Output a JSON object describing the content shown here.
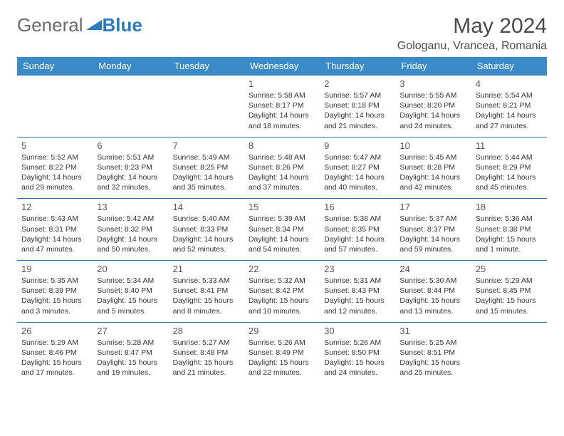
{
  "brand": {
    "part1": "General",
    "part2": "Blue",
    "color1": "#6b6b6b",
    "color2": "#2b7bbf"
  },
  "title": "May 2024",
  "location": "Gologanu, Vrancea, Romania",
  "header_bg": "#3b8bc9",
  "header_fg": "#ffffff",
  "row_border": "#2f6fa3",
  "weekdays": [
    "Sunday",
    "Monday",
    "Tuesday",
    "Wednesday",
    "Thursday",
    "Friday",
    "Saturday"
  ],
  "weeks": [
    [
      null,
      null,
      null,
      {
        "n": "1",
        "sr": "5:58 AM",
        "ss": "8:17 PM",
        "dl": "14 hours and 18 minutes."
      },
      {
        "n": "2",
        "sr": "5:57 AM",
        "ss": "8:18 PM",
        "dl": "14 hours and 21 minutes."
      },
      {
        "n": "3",
        "sr": "5:55 AM",
        "ss": "8:20 PM",
        "dl": "14 hours and 24 minutes."
      },
      {
        "n": "4",
        "sr": "5:54 AM",
        "ss": "8:21 PM",
        "dl": "14 hours and 27 minutes."
      }
    ],
    [
      {
        "n": "5",
        "sr": "5:52 AM",
        "ss": "8:22 PM",
        "dl": "14 hours and 29 minutes."
      },
      {
        "n": "6",
        "sr": "5:51 AM",
        "ss": "8:23 PM",
        "dl": "14 hours and 32 minutes."
      },
      {
        "n": "7",
        "sr": "5:49 AM",
        "ss": "8:25 PM",
        "dl": "14 hours and 35 minutes."
      },
      {
        "n": "8",
        "sr": "5:48 AM",
        "ss": "8:26 PM",
        "dl": "14 hours and 37 minutes."
      },
      {
        "n": "9",
        "sr": "5:47 AM",
        "ss": "8:27 PM",
        "dl": "14 hours and 40 minutes."
      },
      {
        "n": "10",
        "sr": "5:45 AM",
        "ss": "8:28 PM",
        "dl": "14 hours and 42 minutes."
      },
      {
        "n": "11",
        "sr": "5:44 AM",
        "ss": "8:29 PM",
        "dl": "14 hours and 45 minutes."
      }
    ],
    [
      {
        "n": "12",
        "sr": "5:43 AM",
        "ss": "8:31 PM",
        "dl": "14 hours and 47 minutes."
      },
      {
        "n": "13",
        "sr": "5:42 AM",
        "ss": "8:32 PM",
        "dl": "14 hours and 50 minutes."
      },
      {
        "n": "14",
        "sr": "5:40 AM",
        "ss": "8:33 PM",
        "dl": "14 hours and 52 minutes."
      },
      {
        "n": "15",
        "sr": "5:39 AM",
        "ss": "8:34 PM",
        "dl": "14 hours and 54 minutes."
      },
      {
        "n": "16",
        "sr": "5:38 AM",
        "ss": "8:35 PM",
        "dl": "14 hours and 57 minutes."
      },
      {
        "n": "17",
        "sr": "5:37 AM",
        "ss": "8:37 PM",
        "dl": "14 hours and 59 minutes."
      },
      {
        "n": "18",
        "sr": "5:36 AM",
        "ss": "8:38 PM",
        "dl": "15 hours and 1 minute."
      }
    ],
    [
      {
        "n": "19",
        "sr": "5:35 AM",
        "ss": "8:39 PM",
        "dl": "15 hours and 3 minutes."
      },
      {
        "n": "20",
        "sr": "5:34 AM",
        "ss": "8:40 PM",
        "dl": "15 hours and 5 minutes."
      },
      {
        "n": "21",
        "sr": "5:33 AM",
        "ss": "8:41 PM",
        "dl": "15 hours and 8 minutes."
      },
      {
        "n": "22",
        "sr": "5:32 AM",
        "ss": "8:42 PM",
        "dl": "15 hours and 10 minutes."
      },
      {
        "n": "23",
        "sr": "5:31 AM",
        "ss": "8:43 PM",
        "dl": "15 hours and 12 minutes."
      },
      {
        "n": "24",
        "sr": "5:30 AM",
        "ss": "8:44 PM",
        "dl": "15 hours and 13 minutes."
      },
      {
        "n": "25",
        "sr": "5:29 AM",
        "ss": "8:45 PM",
        "dl": "15 hours and 15 minutes."
      }
    ],
    [
      {
        "n": "26",
        "sr": "5:29 AM",
        "ss": "8:46 PM",
        "dl": "15 hours and 17 minutes."
      },
      {
        "n": "27",
        "sr": "5:28 AM",
        "ss": "8:47 PM",
        "dl": "15 hours and 19 minutes."
      },
      {
        "n": "28",
        "sr": "5:27 AM",
        "ss": "8:48 PM",
        "dl": "15 hours and 21 minutes."
      },
      {
        "n": "29",
        "sr": "5:26 AM",
        "ss": "8:49 PM",
        "dl": "15 hours and 22 minutes."
      },
      {
        "n": "30",
        "sr": "5:26 AM",
        "ss": "8:50 PM",
        "dl": "15 hours and 24 minutes."
      },
      {
        "n": "31",
        "sr": "5:25 AM",
        "ss": "8:51 PM",
        "dl": "15 hours and 25 minutes."
      },
      null
    ]
  ],
  "labels": {
    "sunrise": "Sunrise: ",
    "sunset": "Sunset: ",
    "daylight": "Daylight: "
  }
}
